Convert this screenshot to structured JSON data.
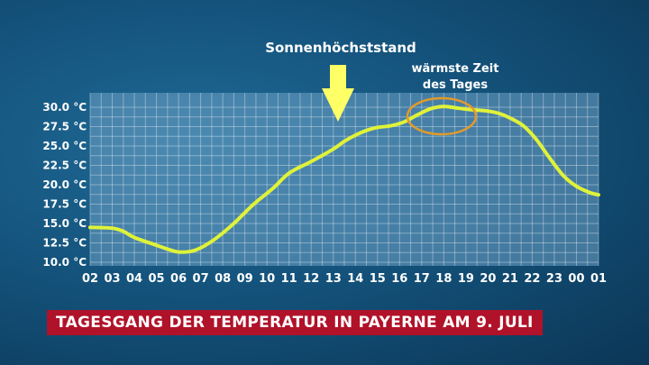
{
  "caption": "TAGESGANG DER TEMPERATUR IN PAYERNE AM 9. JULI",
  "annotations": {
    "sun_peak": "Sonnenhöchststand",
    "warmest_line1": "wärmste Zeit",
    "warmest_line2": "des Tages"
  },
  "colors": {
    "line": "#dff23a",
    "arrow": "#ffff66",
    "circle": "#e29a2a",
    "banner": "#b0122a"
  },
  "chart_data": {
    "type": "line",
    "title": "TAGESGANG DER TEMPERATUR IN PAYERNE AM 9. JULI",
    "xlabel": "",
    "ylabel": "",
    "categories": [
      "02",
      "03",
      "04",
      "05",
      "06",
      "07",
      "08",
      "09",
      "10",
      "11",
      "12",
      "13",
      "14",
      "15",
      "16",
      "17",
      "18",
      "19",
      "20",
      "21",
      "22",
      "23",
      "00",
      "01"
    ],
    "y_ticks": [
      "10.0 °C",
      "12.5 °C",
      "15.0 °C",
      "17.5 °C",
      "20.0 °C",
      "22.5 °C",
      "25.0 °C",
      "27.5 °C",
      "30.0 °C"
    ],
    "ylim": [
      10,
      31
    ],
    "grid": true,
    "series": [
      {
        "name": "",
        "x": [
          2.0,
          3.0,
          3.5,
          4.0,
          5.0,
          5.6,
          6.1,
          6.8,
          7.6,
          8.5,
          9.4,
          10.3,
          11.0,
          12.0,
          13.0,
          13.5,
          14.0,
          14.5,
          15.0,
          15.6,
          16.2,
          16.8,
          17.4,
          18.0,
          18.6,
          19.2,
          20.0,
          20.5,
          21.0,
          21.6,
          22.2,
          22.8,
          23.4,
          24.0,
          24.6,
          25.0
        ],
        "y": [
          14.5,
          14.4,
          14.0,
          13.2,
          12.2,
          11.6,
          11.3,
          11.6,
          12.9,
          15.0,
          17.5,
          19.6,
          21.5,
          23.0,
          24.6,
          25.6,
          26.4,
          27.0,
          27.4,
          27.6,
          28.1,
          29.0,
          29.8,
          30.1,
          29.9,
          29.7,
          29.5,
          29.2,
          28.6,
          27.6,
          25.8,
          23.4,
          21.2,
          19.8,
          19.0,
          18.7
        ]
      }
    ],
    "annotations": [
      {
        "text": "Sonnenhöchststand",
        "x": 13.0
      },
      {
        "text": "wärmste Zeit des Tages",
        "x": 18.0
      }
    ]
  }
}
